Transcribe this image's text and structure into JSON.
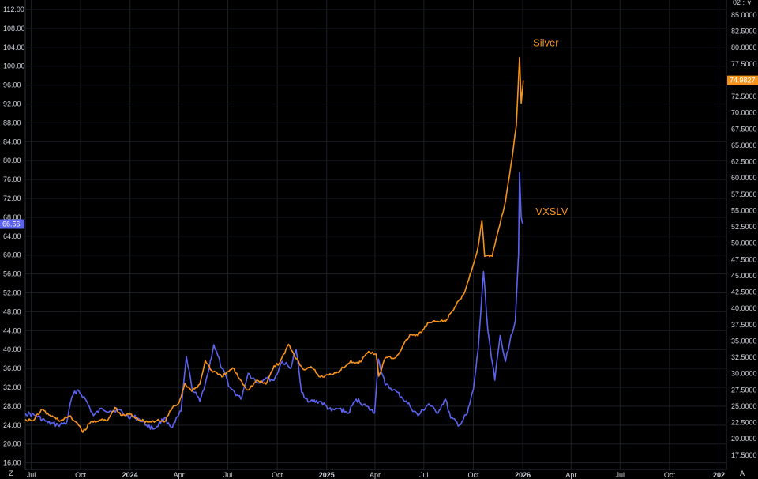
{
  "colors": {
    "background": "#000000",
    "grid": "#1c1f27",
    "axis_text": "#d1d4dc",
    "silver": "#f7931a",
    "vxslv": "#5b63f0"
  },
  "corner_labels": {
    "bottom_left": "Z",
    "bottom_right": "A",
    "top_right": "02 : ∨"
  },
  "chart_data": {
    "type": "line",
    "title": "",
    "x_ticks": [
      {
        "label": "Jul",
        "date": "2023-07-01"
      },
      {
        "label": "Oct",
        "date": "2023-10-01"
      },
      {
        "label": "2024",
        "date": "2024-01-01",
        "year": true
      },
      {
        "label": "Apr",
        "date": "2024-04-01"
      },
      {
        "label": "Jul",
        "date": "2024-07-01"
      },
      {
        "label": "Oct",
        "date": "2024-10-01"
      },
      {
        "label": "2025",
        "date": "2025-01-01",
        "year": true
      },
      {
        "label": "Apr",
        "date": "2025-04-01"
      },
      {
        "label": "Jul",
        "date": "2025-07-01"
      },
      {
        "label": "Oct",
        "date": "2025-10-01"
      },
      {
        "label": "2026",
        "date": "2026-01-01",
        "year": true
      },
      {
        "label": "Apr",
        "date": "2026-04-01"
      },
      {
        "label": "Jul",
        "date": "2026-07-01"
      },
      {
        "label": "Oct",
        "date": "2026-10-01"
      },
      {
        "label": "202",
        "date": "2027-01-01",
        "year": true
      }
    ],
    "x_range": [
      "2023-06-20",
      "2027-01-15"
    ],
    "left_axis": {
      "range": [
        14.6,
        114
      ],
      "ticks": [
        "16.00",
        "20.00",
        "24.00",
        "28.00",
        "32.00",
        "36.00",
        "40.00",
        "44.00",
        "48.00",
        "52.00",
        "56.00",
        "60.00",
        "64.00",
        "68.00",
        "72.00",
        "76.00",
        "80.00",
        "84.00",
        "88.00",
        "92.00",
        "96.00",
        "100.00",
        "104.00",
        "108.00",
        "112.00"
      ],
      "last_value_label": "66.56"
    },
    "right_axis": {
      "range": [
        15.3,
        87.3
      ],
      "ticks": [
        "17.5000",
        "20.0000",
        "22.5000",
        "25.0000",
        "27.5000",
        "30.0000",
        "32.5000",
        "35.0000",
        "37.5000",
        "40.0000",
        "42.5000",
        "45.0000",
        "47.5000",
        "50.0000",
        "52.5000",
        "55.0000",
        "57.5000",
        "60.0000",
        "62.5000",
        "65.0000",
        "67.5000",
        "70.0000",
        "72.5000",
        "75.0000",
        "77.5000",
        "80.0000",
        "82.5000",
        "85.0000"
      ],
      "last_value_label": "74.9827"
    },
    "series": [
      {
        "name": "Silver",
        "axis": "right",
        "points": [
          [
            "2023-06-20",
            23.0
          ],
          [
            "2023-07-05",
            22.8
          ],
          [
            "2023-07-20",
            24.5
          ],
          [
            "2023-08-05",
            23.6
          ],
          [
            "2023-08-25",
            22.8
          ],
          [
            "2023-09-10",
            23.5
          ],
          [
            "2023-09-25",
            22.4
          ],
          [
            "2023-10-05",
            21.0
          ],
          [
            "2023-10-20",
            22.6
          ],
          [
            "2023-11-05",
            22.9
          ],
          [
            "2023-11-20",
            22.8
          ],
          [
            "2023-12-04",
            24.8
          ],
          [
            "2023-12-15",
            23.6
          ],
          [
            "2024-01-01",
            23.8
          ],
          [
            "2024-01-20",
            22.9
          ],
          [
            "2024-02-05",
            22.6
          ],
          [
            "2024-02-20",
            22.8
          ],
          [
            "2024-03-05",
            22.6
          ],
          [
            "2024-03-20",
            24.8
          ],
          [
            "2024-04-01",
            25.5
          ],
          [
            "2024-04-12",
            28.5
          ],
          [
            "2024-04-25",
            27.3
          ],
          [
            "2024-05-10",
            28.4
          ],
          [
            "2024-05-20",
            32.0
          ],
          [
            "2024-06-01",
            30.5
          ],
          [
            "2024-06-20",
            29.5
          ],
          [
            "2024-07-10",
            30.9
          ],
          [
            "2024-07-25",
            29.0
          ],
          [
            "2024-08-07",
            27.5
          ],
          [
            "2024-08-25",
            29.0
          ],
          [
            "2024-09-10",
            28.4
          ],
          [
            "2024-09-25",
            31.2
          ],
          [
            "2024-10-05",
            31.6
          ],
          [
            "2024-10-22",
            34.5
          ],
          [
            "2024-11-05",
            32.3
          ],
          [
            "2024-11-20",
            30.6
          ],
          [
            "2024-12-05",
            30.9
          ],
          [
            "2024-12-20",
            29.5
          ],
          [
            "2025-01-05",
            29.8
          ],
          [
            "2025-01-25",
            30.5
          ],
          [
            "2025-02-15",
            32.0
          ],
          [
            "2025-03-01",
            31.5
          ],
          [
            "2025-03-20",
            33.4
          ],
          [
            "2025-04-03",
            33.0
          ],
          [
            "2025-04-08",
            29.6
          ],
          [
            "2025-04-20",
            32.4
          ],
          [
            "2025-05-10",
            32.5
          ],
          [
            "2025-06-05",
            36.0
          ],
          [
            "2025-06-20",
            35.8
          ],
          [
            "2025-07-10",
            37.8
          ],
          [
            "2025-07-25",
            38.0
          ],
          [
            "2025-08-10",
            38.0
          ],
          [
            "2025-08-30",
            40.5
          ],
          [
            "2025-09-15",
            42.5
          ],
          [
            "2025-09-30",
            46.5
          ],
          [
            "2025-10-10",
            49.5
          ],
          [
            "2025-10-17",
            53.5
          ],
          [
            "2025-10-22",
            48.0
          ],
          [
            "2025-11-05",
            48.0
          ],
          [
            "2025-11-15",
            51.5
          ],
          [
            "2025-11-30",
            56.5
          ],
          [
            "2025-12-10",
            62.0
          ],
          [
            "2025-12-20",
            68.0
          ],
          [
            "2025-12-26",
            78.5
          ],
          [
            "2025-12-29",
            71.5
          ],
          [
            "2026-01-02",
            74.98
          ]
        ]
      },
      {
        "name": "VXSLV",
        "axis": "left",
        "points": [
          [
            "2023-06-20",
            26.5
          ],
          [
            "2023-07-10",
            26.0
          ],
          [
            "2023-08-01",
            24.5
          ],
          [
            "2023-08-20",
            24.0
          ],
          [
            "2023-09-05",
            24.5
          ],
          [
            "2023-09-15",
            30.0
          ],
          [
            "2023-09-25",
            31.5
          ],
          [
            "2023-10-10",
            29.5
          ],
          [
            "2023-10-25",
            26.0
          ],
          [
            "2023-11-10",
            27.5
          ],
          [
            "2023-11-25",
            27.0
          ],
          [
            "2023-12-10",
            27.3
          ],
          [
            "2023-12-25",
            26.0
          ],
          [
            "2024-01-15",
            25.5
          ],
          [
            "2024-02-01",
            24.0
          ],
          [
            "2024-02-15",
            23.2
          ],
          [
            "2024-03-05",
            25.5
          ],
          [
            "2024-03-20",
            23.5
          ],
          [
            "2024-04-05",
            27.0
          ],
          [
            "2024-04-15",
            38.5
          ],
          [
            "2024-04-25",
            32.0
          ],
          [
            "2024-05-10",
            29.0
          ],
          [
            "2024-05-25",
            35.0
          ],
          [
            "2024-06-05",
            41.0
          ],
          [
            "2024-06-20",
            36.0
          ],
          [
            "2024-07-05",
            32.0
          ],
          [
            "2024-07-25",
            29.5
          ],
          [
            "2024-08-08",
            35.0
          ],
          [
            "2024-08-25",
            33.0
          ],
          [
            "2024-09-10",
            34.0
          ],
          [
            "2024-09-25",
            33.5
          ],
          [
            "2024-10-10",
            37.5
          ],
          [
            "2024-10-25",
            36.0
          ],
          [
            "2024-11-05",
            40.0
          ],
          [
            "2024-11-15",
            31.0
          ],
          [
            "2024-11-30",
            29.0
          ],
          [
            "2024-12-20",
            29.0
          ],
          [
            "2025-01-10",
            27.0
          ],
          [
            "2025-01-25",
            27.5
          ],
          [
            "2025-02-10",
            26.5
          ],
          [
            "2025-02-25",
            29.5
          ],
          [
            "2025-03-15",
            28.0
          ],
          [
            "2025-03-31",
            26.5
          ],
          [
            "2025-04-07",
            38.0
          ],
          [
            "2025-04-20",
            32.5
          ],
          [
            "2025-05-05",
            31.5
          ],
          [
            "2025-05-20",
            30.0
          ],
          [
            "2025-06-05",
            28.0
          ],
          [
            "2025-06-20",
            26.0
          ],
          [
            "2025-07-10",
            28.5
          ],
          [
            "2025-07-25",
            26.5
          ],
          [
            "2025-08-10",
            29.5
          ],
          [
            "2025-08-20",
            25.5
          ],
          [
            "2025-09-05",
            24.0
          ],
          [
            "2025-09-20",
            26.5
          ],
          [
            "2025-10-01",
            31.5
          ],
          [
            "2025-10-10",
            40.0
          ],
          [
            "2025-10-20",
            56.5
          ],
          [
            "2025-10-28",
            44.0
          ],
          [
            "2025-11-10",
            33.5
          ],
          [
            "2025-11-20",
            43.0
          ],
          [
            "2025-11-30",
            37.5
          ],
          [
            "2025-12-10",
            43.0
          ],
          [
            "2025-12-18",
            46.0
          ],
          [
            "2025-12-24",
            60.0
          ],
          [
            "2025-12-26",
            77.5
          ],
          [
            "2025-12-29",
            68.0
          ],
          [
            "2026-01-02",
            66.56
          ]
        ]
      }
    ],
    "annotations": [
      {
        "text": "Silver",
        "series": "Silver",
        "date": "2026-01-20",
        "value": 80.2
      },
      {
        "text": "VXSLV",
        "series": "VXSLV",
        "date": "2026-01-25",
        "value": 68.5
      }
    ]
  }
}
